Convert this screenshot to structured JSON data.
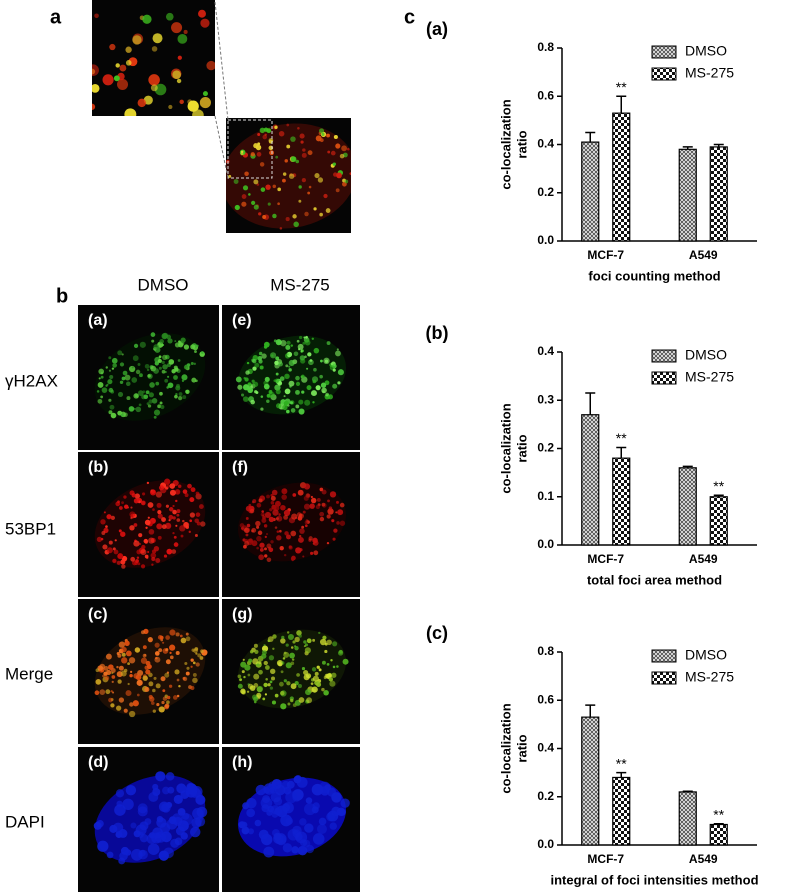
{
  "figure": {
    "panel_labels": [
      "a",
      "b",
      "c"
    ],
    "columns": [
      "DMSO",
      "MS-275"
    ],
    "rows": [
      "γH2AX",
      "53BP1",
      "Merge",
      "DAPI"
    ],
    "image_labels": [
      "(a)",
      "(b)",
      "(c)",
      "(d)",
      "(e)",
      "(f)",
      "(g)",
      "(h)"
    ]
  },
  "chart_data": [
    {
      "type": "bar",
      "title": "(a)",
      "xlabel": "foci counting method",
      "ylabel": [
        "co-localization",
        "ratio"
      ],
      "categories": [
        "MCF-7",
        "A549"
      ],
      "series": [
        {
          "name": "DMSO",
          "color": "#000000",
          "hatch": "crosshatch",
          "values": [
            0.41,
            0.38
          ],
          "errors": [
            0.04,
            0.01
          ],
          "annotations": [
            null,
            null
          ]
        },
        {
          "name": "MS-275",
          "color": "#000000",
          "hatch": "checker",
          "values": [
            0.53,
            0.39
          ],
          "errors": [
            0.07,
            0.01
          ],
          "annotations": [
            "**",
            null
          ]
        }
      ],
      "ylim": [
        0,
        0.8
      ],
      "yticks": [
        {
          "value": 0,
          "label": "0.0"
        },
        0.2,
        0.4,
        0.6,
        0.8
      ],
      "legend": "upper right"
    },
    {
      "type": "bar",
      "title": "(b)",
      "xlabel": "total foci area method",
      "ylabel": [
        "co-localization",
        "ratio"
      ],
      "categories": [
        "MCF-7",
        "A549"
      ],
      "series": [
        {
          "name": "DMSO",
          "color": "#000000",
          "hatch": "crosshatch",
          "values": [
            0.27,
            0.16
          ],
          "errors": [
            0.045,
            0.003
          ],
          "annotations": [
            null,
            null
          ]
        },
        {
          "name": "MS-275",
          "color": "#000000",
          "hatch": "checker",
          "values": [
            0.18,
            0.1
          ],
          "errors": [
            0.022,
            0.003
          ],
          "annotations": [
            "**",
            "**"
          ]
        }
      ],
      "ylim": [
        0,
        0.4
      ],
      "yticks": [
        {
          "value": 0,
          "label": "0.0"
        },
        0.1,
        0.2,
        0.3,
        0.4
      ],
      "legend": "upper right"
    },
    {
      "type": "bar",
      "title": "(c)",
      "xlabel": "integral of foci intensities method",
      "ylabel": [
        "co-localization",
        "ratio"
      ],
      "categories": [
        "MCF-7",
        "A549"
      ],
      "series": [
        {
          "name": "DMSO",
          "color": "#000000",
          "hatch": "crosshatch",
          "values": [
            0.53,
            0.22
          ],
          "errors": [
            0.05,
            0.003
          ],
          "annotations": [
            null,
            null
          ]
        },
        {
          "name": "MS-275",
          "color": "#000000",
          "hatch": "checker",
          "values": [
            0.28,
            0.085
          ],
          "errors": [
            0.02,
            0.003
          ],
          "annotations": [
            "**",
            "**"
          ]
        }
      ],
      "ylim": [
        0,
        0.8
      ],
      "yticks": [
        {
          "value": 0,
          "label": "0.0"
        },
        0.2,
        0.4,
        0.6,
        0.8
      ],
      "legend": "upper right"
    }
  ]
}
